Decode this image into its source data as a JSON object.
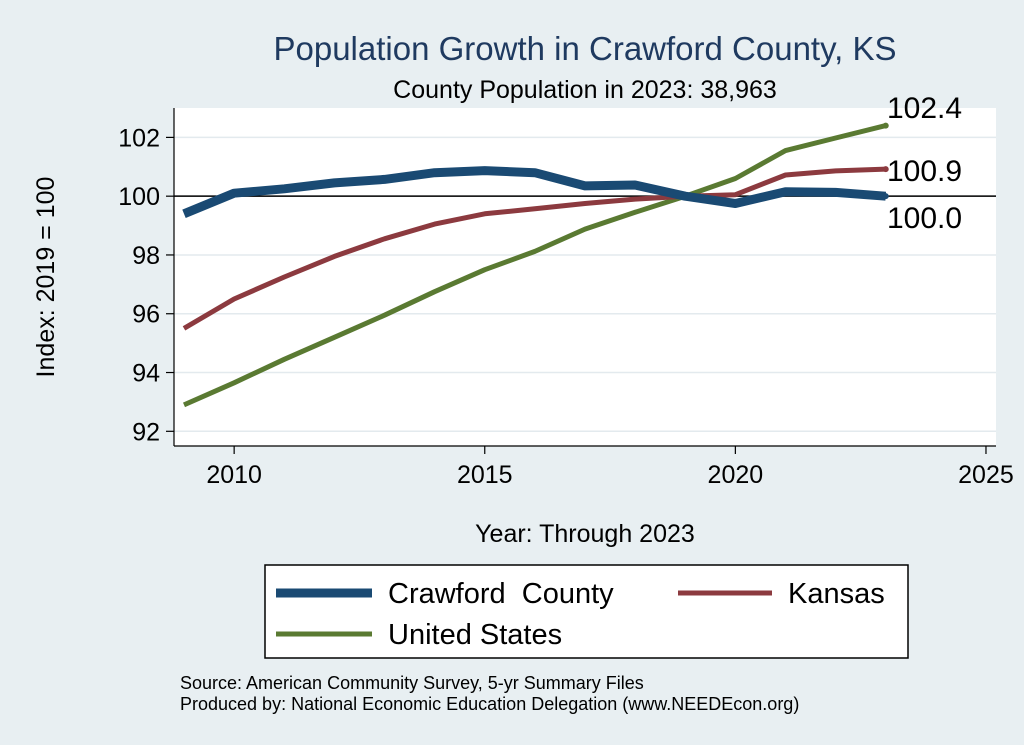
{
  "chart_data": {
    "type": "line",
    "title": "Population Growth in Crawford County, KS",
    "subtitle": "County Population in 2023: 38,963",
    "xlabel": "Year: Through 2023",
    "ylabel": "Index: 2019 = 100",
    "xlim": [
      2008.8,
      2025.2
    ],
    "ylim": [
      91.5,
      103
    ],
    "xticks": [
      2010,
      2015,
      2020,
      2025
    ],
    "yticks": [
      92,
      94,
      96,
      98,
      100,
      102
    ],
    "reference_line": 100,
    "x": [
      2009,
      2010,
      2011,
      2012,
      2013,
      2014,
      2015,
      2016,
      2017,
      2018,
      2019,
      2020,
      2021,
      2022,
      2023
    ],
    "series": [
      {
        "name": "Crawford  County",
        "color": "#1a4a73",
        "values": [
          99.4,
          100.1,
          100.25,
          100.45,
          100.57,
          100.8,
          100.87,
          100.8,
          100.35,
          100.38,
          100.0,
          99.75,
          100.15,
          100.13,
          100.0
        ],
        "end_label": "100.0"
      },
      {
        "name": "Kansas",
        "color": "#8c3a3f",
        "values": [
          95.5,
          96.5,
          97.25,
          97.95,
          98.55,
          99.05,
          99.4,
          99.57,
          99.75,
          99.9,
          100.0,
          100.05,
          100.72,
          100.86,
          100.92
        ],
        "end_label": "100.9"
      },
      {
        "name": "United States",
        "color": "#5a7a32",
        "values": [
          92.9,
          93.65,
          94.45,
          95.2,
          95.95,
          96.75,
          97.5,
          98.12,
          98.88,
          99.45,
          100.0,
          100.6,
          101.55,
          101.98,
          102.4
        ],
        "end_label": "102.4"
      }
    ],
    "legend": [
      "Crawford  County",
      "Kansas",
      "United States"
    ]
  },
  "source": {
    "line1": "Source: American Community Survey, 5-yr Summary Files",
    "line2": "Produced by: National Economic Education Delegation (www.NEEDEcon.org)"
  }
}
